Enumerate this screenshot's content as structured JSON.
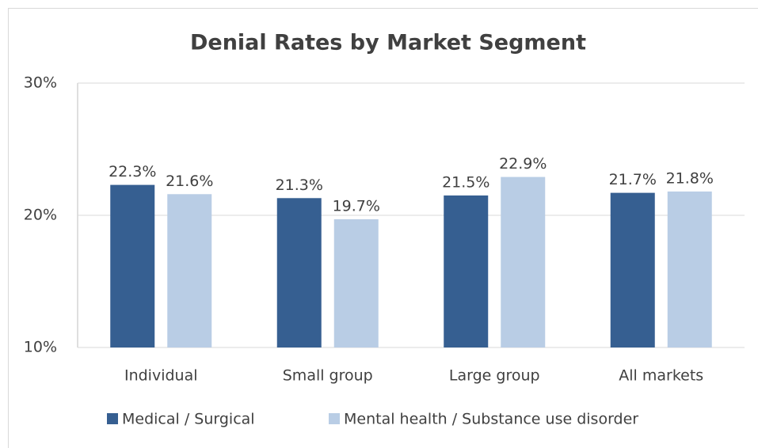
{
  "chart_data": {
    "type": "bar",
    "title": "Denial Rates by Market Segment",
    "categories": [
      "Individual",
      "Small group",
      "Large group",
      "All markets"
    ],
    "series": [
      {
        "name": "Medical / Surgical",
        "color": "#365f91",
        "values": [
          22.3,
          21.3,
          21.5,
          21.7
        ],
        "value_labels": [
          "22.3%",
          "21.3%",
          "21.5%",
          "21.7%"
        ]
      },
      {
        "name": "Mental health / Substance use disorder",
        "color": "#b9cde5",
        "values": [
          21.6,
          19.7,
          22.9,
          21.8
        ],
        "value_labels": [
          "21.6%",
          "19.7%",
          "22.9%",
          "21.8%"
        ]
      }
    ],
    "ylim": [
      10,
      30
    ],
    "yticks": [
      {
        "value": 10,
        "label": "10%"
      },
      {
        "value": 20,
        "label": "20%"
      },
      {
        "value": 30,
        "label": "30%"
      }
    ],
    "grid": true,
    "legend": "bottom"
  }
}
